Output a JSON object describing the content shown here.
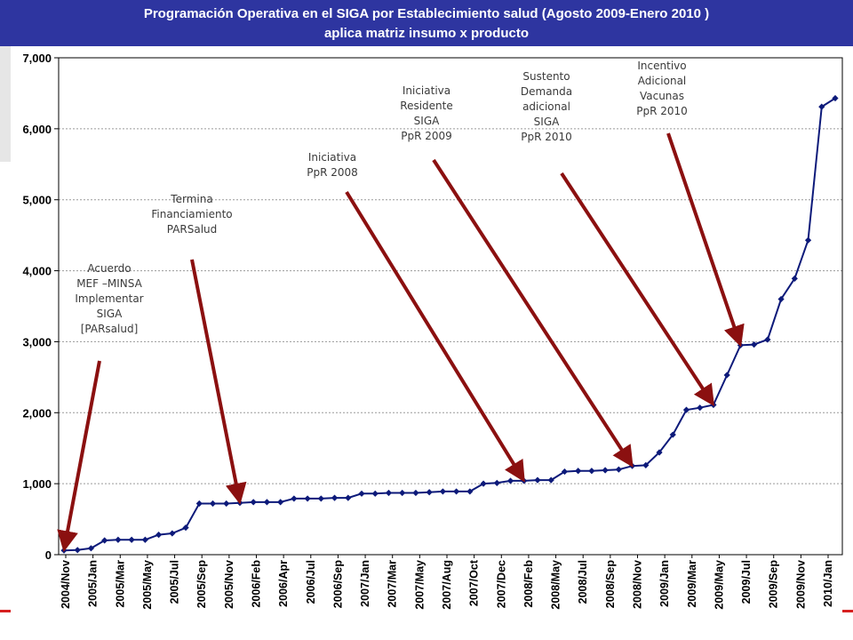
{
  "header": {
    "title_line1": "Programación Operativa en el SIGA por Establecimiento salud (Agosto 2009-Enero 2010 )",
    "title_line2": "aplica matriz insumo x producto"
  },
  "colors": {
    "header_bg": "#2e35a0",
    "series": "#0d1a7a",
    "arrow": "#8b1010",
    "grid": "#9a9a9a"
  },
  "chart_data": {
    "type": "line",
    "ylim": [
      0,
      7000
    ],
    "yticks": [
      0,
      1000,
      2000,
      3000,
      4000,
      5000,
      6000,
      7000
    ],
    "ytick_labels": [
      "0",
      "1,000",
      "2,000",
      "3,000",
      "4,000",
      "5,000",
      "6,000",
      "7,000"
    ],
    "grid": true,
    "x_labels": [
      "2004/Nov",
      "2005/Jan",
      "2005/Mar",
      "2005/May",
      "2005/Jul",
      "2005/Sep",
      "2005/Nov",
      "2006/Feb",
      "2006/Apr",
      "2006/Jul",
      "2006/Sep",
      "2007/Jan",
      "2007/Mar",
      "2007/May",
      "2007/Aug",
      "2007/Oct",
      "2007/Dec",
      "2008/Feb",
      "2008/May",
      "2008/Jul",
      "2008/Sep",
      "2008/Nov",
      "2009/Jan",
      "2009/Mar",
      "2009/May",
      "2009/Jul",
      "2009/Sep",
      "2009/Nov",
      "2010/Jan"
    ],
    "series": [
      {
        "values": [
          60,
          65,
          90,
          200,
          210,
          210,
          210,
          280,
          300,
          380,
          720,
          720,
          720,
          730,
          740,
          740,
          740,
          790,
          790,
          790,
          800,
          800,
          860,
          860,
          870,
          870,
          870,
          880,
          890,
          890,
          890,
          1000,
          1010,
          1040,
          1040,
          1050,
          1050,
          1170,
          1180,
          1180,
          1190,
          1200,
          1250,
          1260,
          1440,
          1690,
          2040,
          2070,
          2110,
          2530,
          2950,
          2960,
          3030,
          3600,
          3890,
          4430,
          6310,
          6430
        ]
      }
    ],
    "annotations": [
      {
        "lines": [
          "Acuerdo",
          "MEF –MINSA",
          "Implementar",
          "SIGA",
          "[PARsalud]"
        ],
        "target_index": 0
      },
      {
        "lines": [
          "Termina",
          "Financiamiento",
          "PARSalud"
        ],
        "target_index": 13
      },
      {
        "lines": [
          "Iniciativa",
          "PpR 2008"
        ],
        "target_index": 34
      },
      {
        "lines": [
          "Iniciativa",
          "Residente",
          "SIGA",
          "PpR 2009"
        ],
        "target_index": 42
      },
      {
        "lines": [
          "Sustento",
          "Demanda",
          "adicional",
          "SIGA",
          "PpR 2010"
        ],
        "target_index": 48
      },
      {
        "lines": [
          "Incentivo",
          "Adicional",
          "Vacunas",
          "PpR 2010"
        ],
        "target_index": 50
      }
    ]
  }
}
